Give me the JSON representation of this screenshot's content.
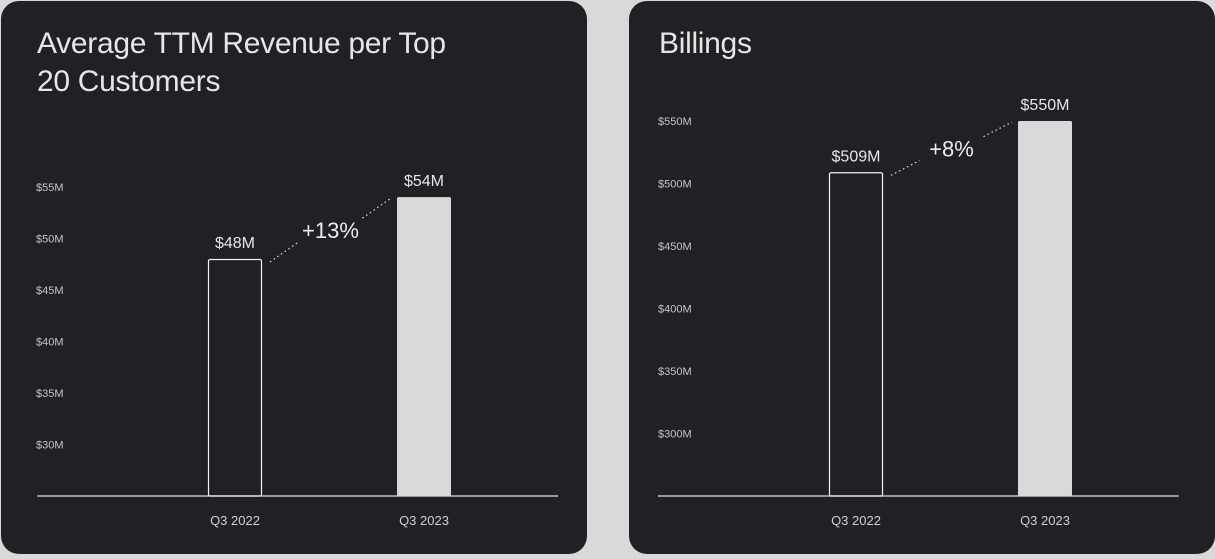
{
  "colors": {
    "page_bg": "#d9d9d9",
    "panel_bg": "#1f2124",
    "bar_outline": "#f2f2f2",
    "bar_fill": "#d9d9d9",
    "axis": "#e0e0e0",
    "text": "#e6e6e6"
  },
  "chart_data": [
    {
      "type": "bar",
      "title": "Average TTM Revenue per Top 20 Customers",
      "categories": [
        "Q3 2022",
        "Q3 2023"
      ],
      "values": [
        48,
        54
      ],
      "value_labels": [
        "$48M",
        "$54M"
      ],
      "bar_styles": [
        "outline",
        "filled"
      ],
      "change_label": "+13%",
      "yticks": [
        30,
        35,
        40,
        45,
        50,
        55
      ],
      "ytick_labels": [
        "$30M",
        "$35M",
        "$40M",
        "$45M",
        "$50M",
        "$55M"
      ],
      "ylim": [
        25,
        57.8
      ],
      "grid": false,
      "legend": "none",
      "xlabel": "",
      "ylabel": ""
    },
    {
      "type": "bar",
      "title": "Billings",
      "categories": [
        "Q3 2022",
        "Q3 2023"
      ],
      "values": [
        509,
        550
      ],
      "value_labels": [
        "$509M",
        "$550M"
      ],
      "bar_styles": [
        "outline",
        "filled"
      ],
      "change_label": "+8%",
      "yticks": [
        300,
        350,
        400,
        450,
        500,
        550
      ],
      "ytick_labels": [
        "$300M",
        "$350M",
        "$400M",
        "$450M",
        "$500M",
        "$550M"
      ],
      "ylim": [
        250,
        550
      ],
      "grid": false,
      "legend": "none",
      "xlabel": "",
      "ylabel": ""
    }
  ]
}
